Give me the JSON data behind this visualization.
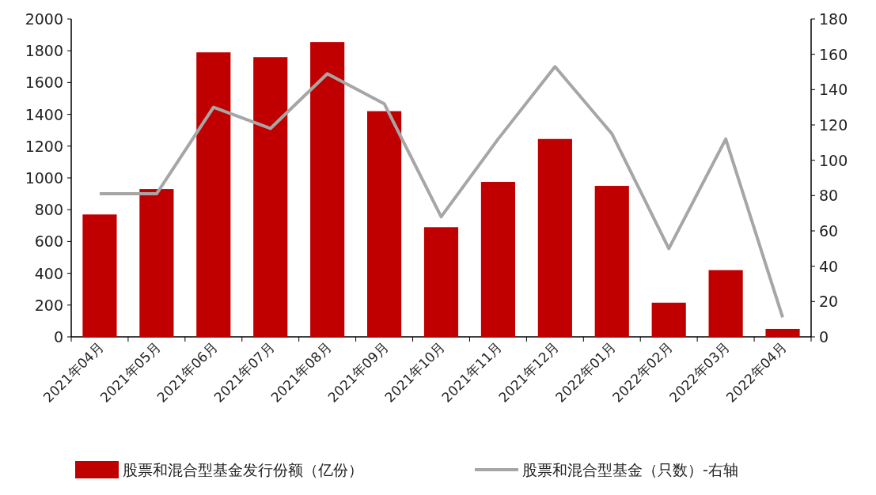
{
  "chart_data": {
    "type": "bar",
    "categories": [
      "2021年04月",
      "2021年05月",
      "2021年06月",
      "2021年07月",
      "2021年08月",
      "2021年09月",
      "2021年10月",
      "2021年11月",
      "2021年12月",
      "2022年01月",
      "2022年02月",
      "2022年03月",
      "2022年04月"
    ],
    "series": [
      {
        "name": "股票和混合型基金发行份额（亿份）",
        "color": "#c00000",
        "values": [
          770,
          930,
          1790,
          1760,
          1855,
          1420,
          690,
          975,
          1245,
          950,
          215,
          420,
          50
        ]
      },
      {
        "name": "股票和混合型基金（只数）-右轴",
        "type": "line",
        "axis": "y2",
        "color": "#a6a6a6",
        "values": [
          81,
          81,
          130,
          118,
          149,
          132,
          68,
          112,
          153,
          115,
          50,
          112,
          11
        ]
      }
    ],
    "ylim": [
      0,
      2000
    ],
    "yticks": [
      0,
      200,
      400,
      600,
      800,
      1000,
      1200,
      1400,
      1600,
      1800,
      2000
    ],
    "y2lim": [
      0,
      180
    ],
    "y2ticks": [
      0,
      20,
      40,
      60,
      80,
      100,
      120,
      140,
      160,
      180
    ],
    "legend": "bottom"
  }
}
